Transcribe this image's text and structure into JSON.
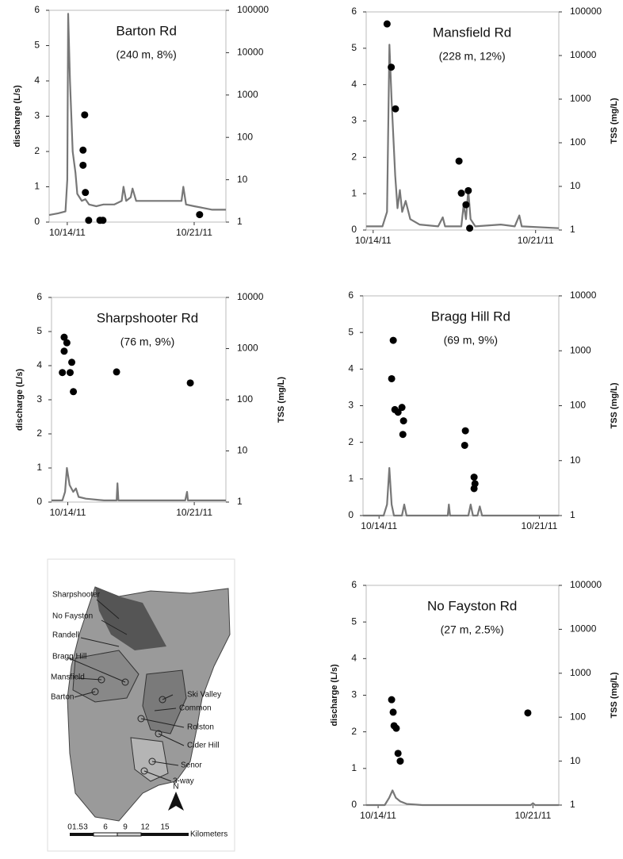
{
  "chart_data": [
    {
      "type": "line_scatter",
      "title": "Barton Rd",
      "subtitle": "(240 m, 8%)",
      "ylabel": "discharge (L/s)",
      "xlim": [
        -1,
        8.75
      ],
      "xticks": [
        {
          "value": 0,
          "label": "10/14/11"
        },
        {
          "value": 7,
          "label": "10/21/11"
        }
      ],
      "ylim": [
        0,
        6
      ],
      "yticks": [
        0,
        1,
        2,
        3,
        4,
        5,
        6
      ],
      "y2lim": [
        1,
        100000
      ],
      "y2ticks": [
        1,
        10,
        100,
        1000,
        10000,
        100000
      ],
      "y2log": true,
      "series": [
        {
          "color": "#777777",
          "x": [
            -1,
            -0.5,
            -0.1,
            0,
            0.05,
            0.15,
            0.3,
            0.45,
            0.55,
            0.8,
            1.0,
            1.2,
            1.6,
            2.0,
            2.6,
            3.0,
            3.1,
            3.25,
            3.5,
            3.6,
            3.8,
            4.5,
            5.5,
            6.3,
            6.4,
            6.55,
            7,
            7.5,
            8.0,
            8.75
          ],
          "values": [
            0.2,
            0.25,
            0.3,
            1.2,
            5.9,
            4,
            2,
            1.4,
            0.8,
            0.6,
            0.65,
            0.5,
            0.45,
            0.5,
            0.5,
            0.6,
            1.0,
            0.6,
            0.7,
            0.95,
            0.6,
            0.6,
            0.6,
            0.6,
            1.0,
            0.5,
            0.45,
            0.4,
            0.35,
            0.35
          ]
        },
        {
          "color": "#000000",
          "axis": "y2",
          "x": [
            0.96,
            0.87,
            0.87,
            1.0,
            1.18,
            1.8,
            1.97,
            7.3
          ],
          "values": [
            340,
            50,
            22,
            5,
            1.1,
            1.1,
            1.1,
            1.5
          ]
        }
      ]
    },
    {
      "type": "line_scatter",
      "title": "Mansfield Rd",
      "subtitle": "(228 m, 12%)",
      "y2label": "TSS (mg/L)",
      "xlim": [
        -0.3,
        8
      ],
      "xticks": [
        {
          "value": 0,
          "label": "10/14/11"
        },
        {
          "value": 7,
          "label": "10/21/11"
        }
      ],
      "ylim": [
        0,
        6
      ],
      "yticks": [
        0,
        1,
        2,
        3,
        4,
        5,
        6
      ],
      "y2lim": [
        1,
        100000
      ],
      "y2ticks": [
        1,
        10,
        100,
        1000,
        10000,
        100000
      ],
      "y2log": true,
      "series": [
        {
          "color": "#777777",
          "x": [
            -0.3,
            0.4,
            0.6,
            0.7,
            0.8,
            0.95,
            1.05,
            1.15,
            1.25,
            1.4,
            1.6,
            2,
            2.8,
            3,
            3.1,
            3.8,
            3.9,
            4.0,
            4.1,
            4.2,
            4.4,
            5.5,
            6.1,
            6.3,
            6.4,
            8
          ],
          "values": [
            0.1,
            0.1,
            0.5,
            5.1,
            3.5,
            1.5,
            0.6,
            1.1,
            0.5,
            0.8,
            0.3,
            0.15,
            0.1,
            0.35,
            0.1,
            0.1,
            0.7,
            0.3,
            1.1,
            0.3,
            0.1,
            0.15,
            0.1,
            0.4,
            0.1,
            0.05
          ]
        },
        {
          "color": "#000000",
          "axis": "y2",
          "x": [
            0.6,
            0.78,
            0.96,
            3.7,
            3.8,
            4.1,
            4.0,
            4.16
          ],
          "values": [
            53000,
            5400,
            600,
            38,
            7,
            8,
            3.8,
            1.1
          ]
        }
      ]
    },
    {
      "type": "line_scatter",
      "title": "Sharpshooter Rd",
      "subtitle": "(76 m, 9%)",
      "ylabel": "discharge (L/s)",
      "y2label": "TSS (mg/L)",
      "xlim": [
        -0.9,
        8.75
      ],
      "xticks": [
        {
          "value": 0,
          "label": "10/14/11"
        },
        {
          "value": 7,
          "label": "10/21/11"
        }
      ],
      "ylim": [
        0,
        6
      ],
      "yticks": [
        0,
        1,
        2,
        3,
        4,
        5,
        6
      ],
      "y2lim": [
        1,
        10000
      ],
      "y2ticks": [
        1,
        10,
        100,
        1000,
        10000
      ],
      "y2log": true,
      "series": [
        {
          "color": "#777777",
          "x": [
            -0.9,
            -0.3,
            -0.15,
            -0.05,
            0.1,
            0.3,
            0.45,
            0.6,
            1,
            2,
            2.7,
            2.75,
            2.8,
            4,
            6.5,
            6.6,
            6.65,
            8.75
          ],
          "values": [
            0.05,
            0.05,
            0.3,
            1.0,
            0.5,
            0.3,
            0.4,
            0.15,
            0.1,
            0.05,
            0.05,
            0.55,
            0.05,
            0.05,
            0.05,
            0.3,
            0.05,
            0.05
          ]
        },
        {
          "color": "#000000",
          "axis": "y2",
          "x": [
            -0.2,
            -0.05,
            -0.2,
            -0.3,
            0.13,
            0.22,
            0.31,
            2.7,
            6.78
          ],
          "values": [
            1670,
            1300,
            890,
            340,
            340,
            540,
            144,
            350,
            213
          ]
        }
      ]
    },
    {
      "type": "line_scatter",
      "title": "Bragg Hill Rd",
      "subtitle": "(69 m, 9%)",
      "y2label": "TSS (mg/L)",
      "xlim": [
        -0.7,
        7.85
      ],
      "xticks": [
        {
          "value": 0,
          "label": "10/14/11"
        },
        {
          "value": 7,
          "label": "10/21/11"
        }
      ],
      "ylim": [
        0,
        6
      ],
      "yticks": [
        0,
        1,
        2,
        3,
        4,
        5,
        6
      ],
      "y2lim": [
        1,
        10000
      ],
      "y2ticks": [
        1,
        10,
        100,
        1000,
        10000
      ],
      "y2log": true,
      "series": [
        {
          "color": "#777777",
          "x": [
            -0.7,
            0.2,
            0.35,
            0.45,
            0.55,
            0.65,
            1.0,
            1.1,
            1.2,
            3.0,
            3.05,
            3.1,
            3.9,
            4.0,
            4.1,
            4.3,
            4.4,
            4.5,
            7.85
          ],
          "values": [
            0,
            0,
            0.3,
            1.3,
            0.3,
            0,
            0,
            0.3,
            0,
            0,
            0.3,
            0,
            0,
            0.3,
            0,
            0,
            0.25,
            0,
            0
          ]
        },
        {
          "color": "#000000",
          "axis": "y2",
          "x": [
            0.62,
            0.55,
            0.69,
            0.83,
            1.0,
            1.07,
            1.04,
            3.77,
            3.74,
            4.15,
            4.19,
            4.15
          ],
          "values": [
            1550,
            310,
            85,
            76,
            93,
            53,
            30,
            35,
            19,
            5,
            3.8,
            3.1
          ]
        }
      ]
    },
    {
      "type": "line_scatter",
      "title": "No Fayston Rd",
      "subtitle": "(27 m, 2.5%)",
      "ylabel": "discharge (L/s)",
      "y2label": "TSS (mg/L)",
      "xlim": [
        -0.54,
        8.17
      ],
      "xticks": [
        {
          "value": 0,
          "label": "10/14/11"
        },
        {
          "value": 7,
          "label": "10/21/11"
        }
      ],
      "ylim": [
        0,
        6
      ],
      "yticks": [
        0,
        1,
        2,
        3,
        4,
        5,
        6
      ],
      "y2lim": [
        1,
        100000
      ],
      "y2ticks": [
        1,
        10,
        100,
        1000,
        10000,
        100000
      ],
      "y2log": true,
      "series": [
        {
          "color": "#777777",
          "x": [
            -0.54,
            0.3,
            0.5,
            0.65,
            0.8,
            1.0,
            1.3,
            2,
            6.9,
            7,
            7.1,
            8.17
          ],
          "values": [
            0,
            0,
            0.2,
            0.4,
            0.2,
            0.1,
            0.03,
            0,
            0,
            0.05,
            0,
            0
          ]
        },
        {
          "color": "#000000",
          "axis": "y2",
          "x": [
            0.61,
            0.68,
            0.72,
            0.82,
            0.9,
            1.0,
            6.77
          ],
          "values": [
            250,
            130,
            64,
            56,
            15,
            10,
            125
          ]
        }
      ]
    }
  ],
  "map": {
    "labels": [
      "Sharpshooter",
      "No Fayston",
      "Randell",
      "Bragg Hill",
      "Mansfield",
      "Barton",
      "Ski Valley",
      "Common",
      "Rolston",
      "Cider Hill",
      "Senor",
      "3-way"
    ],
    "scale_ticks": [
      "0",
      "1.5",
      "3",
      "6",
      "9",
      "12",
      "15"
    ],
    "scale_unit": "Kilometers",
    "north": "N"
  }
}
